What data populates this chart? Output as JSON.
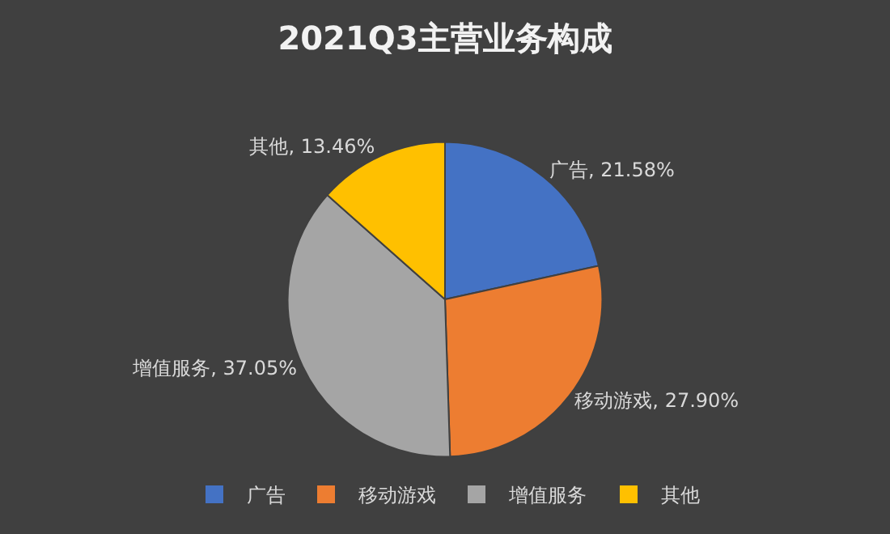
{
  "chart_data": {
    "type": "pie",
    "title": "2021Q3主营业务构成",
    "categories": [
      "广告",
      "移动游戏",
      "增值服务",
      "其他"
    ],
    "values": [
      21.58,
      27.9,
      37.05,
      13.46
    ],
    "colors": [
      "#4472c4",
      "#ed7d31",
      "#a5a5a5",
      "#ffc000"
    ],
    "value_labels": [
      "广告, 21.58%",
      "移动游戏, 27.90%",
      "增值服务, 37.05%",
      "其他, 13.46%"
    ],
    "legend": "bottom"
  }
}
